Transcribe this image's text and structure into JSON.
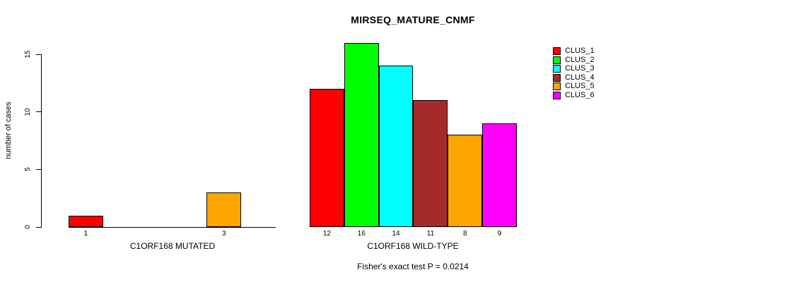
{
  "title": "MIRSEQ_MATURE_CNMF",
  "y_axis": {
    "label": "number of cases",
    "ticks": [
      "0",
      "5",
      "10",
      "15"
    ]
  },
  "footnote": "Fisher's exact test P = 0.0214",
  "legend": {
    "items": [
      {
        "label": "CLUS_1",
        "color": "#FF0000"
      },
      {
        "label": "CLUS_2",
        "color": "#00FF00"
      },
      {
        "label": "CLUS_3",
        "color": "#00FFFF"
      },
      {
        "label": "CLUS_4",
        "color": "#A52A2A"
      },
      {
        "label": "CLUS_5",
        "color": "#FFA500"
      },
      {
        "label": "CLUS_6",
        "color": "#FF00FF"
      }
    ]
  },
  "chart_data": {
    "type": "bar",
    "title": "MIRSEQ_MATURE_CNMF",
    "xlabel": "",
    "ylabel": "number of cases",
    "ylim": [
      0,
      16.4
    ],
    "y_ticks": [
      0,
      5,
      10,
      15
    ],
    "grid": false,
    "legend_position": "top-right",
    "clusters": [
      "CLUS_1",
      "CLUS_2",
      "CLUS_3",
      "CLUS_4",
      "CLUS_5",
      "CLUS_6"
    ],
    "colors": [
      "#FF0000",
      "#00FF00",
      "#00FFFF",
      "#A52A2A",
      "#FFA500",
      "#FF00FF"
    ],
    "groups": [
      {
        "label": "C1ORF168 MUTATED",
        "values": [
          1,
          0,
          0,
          0,
          3,
          0
        ]
      },
      {
        "label": "C1ORF168 WILD-TYPE",
        "values": [
          12,
          16,
          14,
          11,
          8,
          9
        ]
      }
    ],
    "annotation": "Fisher's exact test P = 0.0214"
  }
}
